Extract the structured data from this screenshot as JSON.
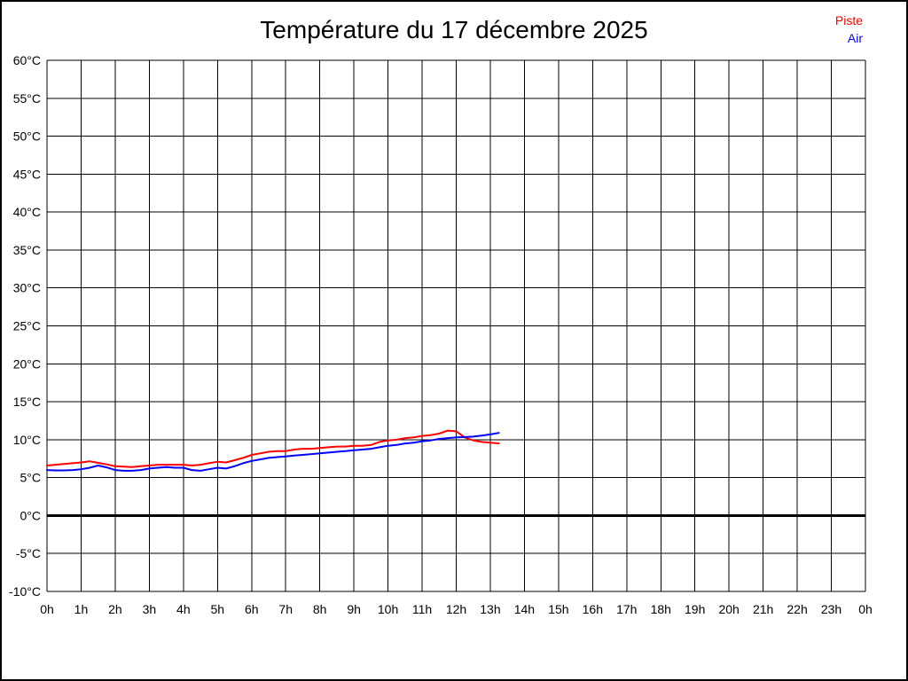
{
  "title": "Température du 17 décembre 2025",
  "legend": [
    {
      "label": "Piste",
      "color": "#ff0000"
    },
    {
      "label": "Air",
      "color": "#0000ff"
    }
  ],
  "chart_data": {
    "type": "line",
    "title": "Température du 17 décembre 2025",
    "xlabel": "",
    "ylabel": "",
    "x_unit": "hours",
    "xlim": [
      0,
      24
    ],
    "ylim": [
      -10,
      60
    ],
    "grid": true,
    "grid_color": "#000000",
    "background_color": "#ffffff",
    "legend_position": "top-right",
    "x_tick_labels": [
      "0h",
      "1h",
      "2h",
      "3h",
      "4h",
      "5h",
      "6h",
      "7h",
      "8h",
      "9h",
      "10h",
      "11h",
      "12h",
      "13h",
      "14h",
      "15h",
      "16h",
      "17h",
      "18h",
      "19h",
      "20h",
      "21h",
      "22h",
      "23h",
      "0h"
    ],
    "y_ticks": [
      {
        "value": 60,
        "label": "60°C"
      },
      {
        "value": 55,
        "label": "55°C"
      },
      {
        "value": 50,
        "label": "50°C"
      },
      {
        "value": 45,
        "label": "45°C"
      },
      {
        "value": 40,
        "label": "40°C"
      },
      {
        "value": 35,
        "label": "35°C"
      },
      {
        "value": 30,
        "label": "30°C"
      },
      {
        "value": 25,
        "label": "25°C"
      },
      {
        "value": 20,
        "label": "20°C"
      },
      {
        "value": 15,
        "label": "15°C"
      },
      {
        "value": 10,
        "label": "10°C"
      },
      {
        "value": 5,
        "label": "5°C"
      },
      {
        "value": 0,
        "label": "0°C"
      },
      {
        "value": -5,
        "label": "-5°C"
      },
      {
        "value": -10,
        "label": "-10°C"
      }
    ],
    "zero_line": {
      "value": 0,
      "color": "#000000",
      "width": 3
    },
    "x_start_hour": 0,
    "x_step_hours": 0.25,
    "series": [
      {
        "name": "Piste",
        "color": "#ff0000",
        "values": [
          6.6,
          6.7,
          6.8,
          6.9,
          7.0,
          7.15,
          6.95,
          6.75,
          6.5,
          6.45,
          6.4,
          6.5,
          6.6,
          6.7,
          6.7,
          6.7,
          6.7,
          6.6,
          6.7,
          6.9,
          7.1,
          7.0,
          7.3,
          7.6,
          8.0,
          8.2,
          8.4,
          8.5,
          8.5,
          8.7,
          8.8,
          8.8,
          8.9,
          9.0,
          9.1,
          9.1,
          9.2,
          9.2,
          9.3,
          9.7,
          9.9,
          10.0,
          10.2,
          10.3,
          10.5,
          10.6,
          10.8,
          11.2,
          11.1,
          10.3,
          9.9,
          9.7,
          9.6,
          9.5
        ]
      },
      {
        "name": "Air",
        "color": "#0000ff",
        "values": [
          6.0,
          5.95,
          5.95,
          6.0,
          6.1,
          6.3,
          6.6,
          6.35,
          6.0,
          5.9,
          5.9,
          6.0,
          6.2,
          6.3,
          6.4,
          6.3,
          6.3,
          6.0,
          5.9,
          6.1,
          6.3,
          6.2,
          6.5,
          6.9,
          7.2,
          7.4,
          7.6,
          7.7,
          7.8,
          7.9,
          8.0,
          8.1,
          8.2,
          8.3,
          8.4,
          8.5,
          8.6,
          8.7,
          8.8,
          9.0,
          9.2,
          9.3,
          9.5,
          9.6,
          9.8,
          9.9,
          10.1,
          10.2,
          10.3,
          10.35,
          10.4,
          10.55,
          10.7,
          10.9
        ]
      }
    ]
  }
}
